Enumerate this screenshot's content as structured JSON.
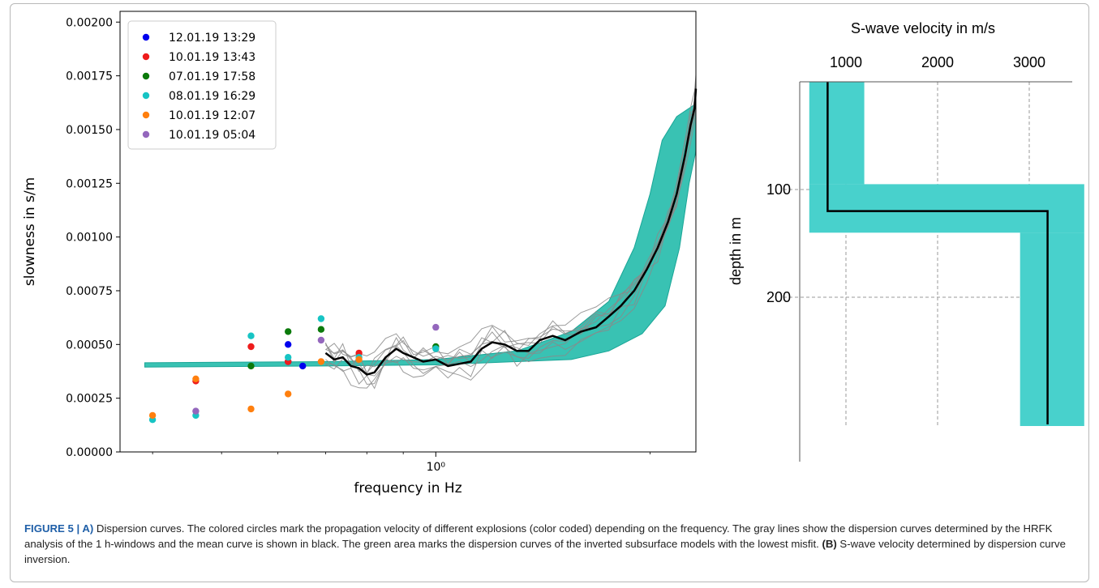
{
  "chart_data": [
    {
      "type": "scatter",
      "panel": "A",
      "xlabel": "frequency in Hz",
      "ylabel": "slowness in s/m",
      "x_scale": "log",
      "xlim": [
        0.36,
        2.32
      ],
      "ylim": [
        0.0,
        0.00205
      ],
      "x_tick_labels": [
        {
          "value": 1.0,
          "label": "10⁰"
        }
      ],
      "y_tick_labels": [
        "0.00000",
        "0.00025",
        "0.00050",
        "0.00075",
        "0.00100",
        "0.00125",
        "0.00150",
        "0.00175",
        "0.00200"
      ],
      "y_tick_values": [
        0.0,
        0.00025,
        0.0005,
        0.00075,
        0.001,
        0.00125,
        0.0015,
        0.00175,
        0.002
      ],
      "legend_position": "upper-left",
      "series": [
        {
          "name": "12.01.19 13:29",
          "color": "#0000ee",
          "points": [
            [
              0.62,
              0.0005
            ],
            [
              0.62,
              0.00042
            ],
            [
              0.65,
              0.0004
            ]
          ]
        },
        {
          "name": "10.01.19 13:43",
          "color": "#ee1c1c",
          "points": [
            [
              0.46,
              0.00033
            ],
            [
              0.55,
              0.00049
            ],
            [
              0.62,
              0.00042
            ],
            [
              0.78,
              0.00046
            ]
          ]
        },
        {
          "name": "07.01.19 17:58",
          "color": "#0b7a0b",
          "points": [
            [
              0.55,
              0.0004
            ],
            [
              0.62,
              0.00056
            ],
            [
              0.69,
              0.00057
            ],
            [
              1.0,
              0.00049
            ]
          ]
        },
        {
          "name": "08.01.19 16:29",
          "color": "#17c4c4",
          "points": [
            [
              0.4,
              0.00015
            ],
            [
              0.46,
              0.00017
            ],
            [
              0.55,
              0.00054
            ],
            [
              0.62,
              0.00044
            ],
            [
              0.69,
              0.00062
            ],
            [
              0.78,
              0.00044
            ],
            [
              1.0,
              0.00048
            ]
          ]
        },
        {
          "name": "10.01.19 12:07",
          "color": "#ff7f0e",
          "points": [
            [
              0.4,
              0.00017
            ],
            [
              0.46,
              0.00034
            ],
            [
              0.55,
              0.0002
            ],
            [
              0.62,
              0.00027
            ],
            [
              0.69,
              0.00042
            ],
            [
              0.78,
              0.00043
            ]
          ]
        },
        {
          "name": "10.01.19 05:04",
          "color": "#9467bd",
          "points": [
            [
              0.46,
              0.00019
            ],
            [
              0.69,
              0.00052
            ],
            [
              1.0,
              0.00058
            ]
          ]
        }
      ],
      "mean_curve": [
        [
          0.7,
          0.00046
        ],
        [
          0.72,
          0.00043
        ],
        [
          0.74,
          0.00044
        ],
        [
          0.76,
          0.0004
        ],
        [
          0.78,
          0.00039
        ],
        [
          0.8,
          0.00036
        ],
        [
          0.82,
          0.00037
        ],
        [
          0.85,
          0.00044
        ],
        [
          0.88,
          0.00048
        ],
        [
          0.9,
          0.00046
        ],
        [
          0.93,
          0.00044
        ],
        [
          0.96,
          0.00042
        ],
        [
          1.0,
          0.00043
        ],
        [
          1.04,
          0.0004
        ],
        [
          1.08,
          0.00041
        ],
        [
          1.12,
          0.00042
        ],
        [
          1.16,
          0.00048
        ],
        [
          1.2,
          0.00051
        ],
        [
          1.25,
          0.0005
        ],
        [
          1.3,
          0.00047
        ],
        [
          1.35,
          0.00047
        ],
        [
          1.4,
          0.00052
        ],
        [
          1.46,
          0.00054
        ],
        [
          1.52,
          0.00052
        ],
        [
          1.6,
          0.00056
        ],
        [
          1.68,
          0.00058
        ],
        [
          1.75,
          0.00063
        ],
        [
          1.82,
          0.00068
        ],
        [
          1.9,
          0.00075
        ],
        [
          1.98,
          0.00085
        ],
        [
          2.05,
          0.00095
        ],
        [
          2.12,
          0.00107
        ],
        [
          2.18,
          0.0012
        ],
        [
          2.24,
          0.00138
        ],
        [
          2.28,
          0.00152
        ],
        [
          2.31,
          0.0016
        ],
        [
          2.32,
          0.00169
        ]
      ],
      "band_upper": [
        [
          0.39,
          0.000415
        ],
        [
          0.7,
          0.00042
        ],
        [
          1.0,
          0.00043
        ],
        [
          1.3,
          0.00047
        ],
        [
          1.55,
          0.00056
        ],
        [
          1.75,
          0.0007
        ],
        [
          1.9,
          0.00095
        ],
        [
          2.0,
          0.0012
        ],
        [
          2.08,
          0.00145
        ],
        [
          2.18,
          0.00156
        ],
        [
          2.32,
          0.00162
        ]
      ],
      "band_lower": [
        [
          0.39,
          0.000395
        ],
        [
          0.7,
          0.0004
        ],
        [
          1.0,
          0.000405
        ],
        [
          1.3,
          0.00042
        ],
        [
          1.55,
          0.00043
        ],
        [
          1.75,
          0.00047
        ],
        [
          1.95,
          0.00055
        ],
        [
          2.1,
          0.00068
        ],
        [
          2.2,
          0.00095
        ],
        [
          2.27,
          0.00125
        ],
        [
          2.32,
          0.0014
        ]
      ],
      "band_color": "#2ebfaf",
      "gray_line_offsets": [
        -4e-05,
        -2e-05,
        0.0,
        2e-05,
        4e-05,
        6e-05,
        -6e-05,
        3e-05
      ]
    },
    {
      "type": "line",
      "panel": "B",
      "title": "S-wave velocity in m/s",
      "ylabel": "depth in m",
      "xlim": [
        0,
        3600
      ],
      "ylim": [
        0,
        320
      ],
      "x_tick_labels": [
        "1000",
        "2000",
        "3000"
      ],
      "x_tick_values": [
        1000,
        2000,
        3000
      ],
      "y_tick_labels": [
        "100",
        "200"
      ],
      "y_tick_values": [
        100,
        200
      ],
      "profile": [
        [
          800,
          0
        ],
        [
          800,
          100
        ],
        [
          800,
          120
        ],
        [
          3200,
          120
        ],
        [
          3200,
          320
        ]
      ],
      "band_segments": [
        {
          "v_min": 600,
          "v_max": 1200,
          "depth_top": 0,
          "depth_bottom": 95
        },
        {
          "v_min": 600,
          "v_max": 3600,
          "depth_top": 95,
          "depth_bottom": 140
        },
        {
          "v_min": 2900,
          "v_max": 3600,
          "depth_top": 140,
          "depth_bottom": 320
        }
      ],
      "band_color": "#48d1cc",
      "grid": true
    }
  ],
  "caption": {
    "label": "FIGURE 5 | A)",
    "text_a": " Dispersion curves. The colored circles mark the propagation velocity of different explosions (color coded) depending on the frequency. The gray lines show the dispersion curves determined by the HRFK analysis of the 1 h-windows and the mean curve is shown in black. The green area marks the dispersion curves of the inverted subsurface models with the lowest misfit. ",
    "label_b": "(B)",
    "text_b": " S-wave velocity determined by dispersion curve inversion."
  }
}
